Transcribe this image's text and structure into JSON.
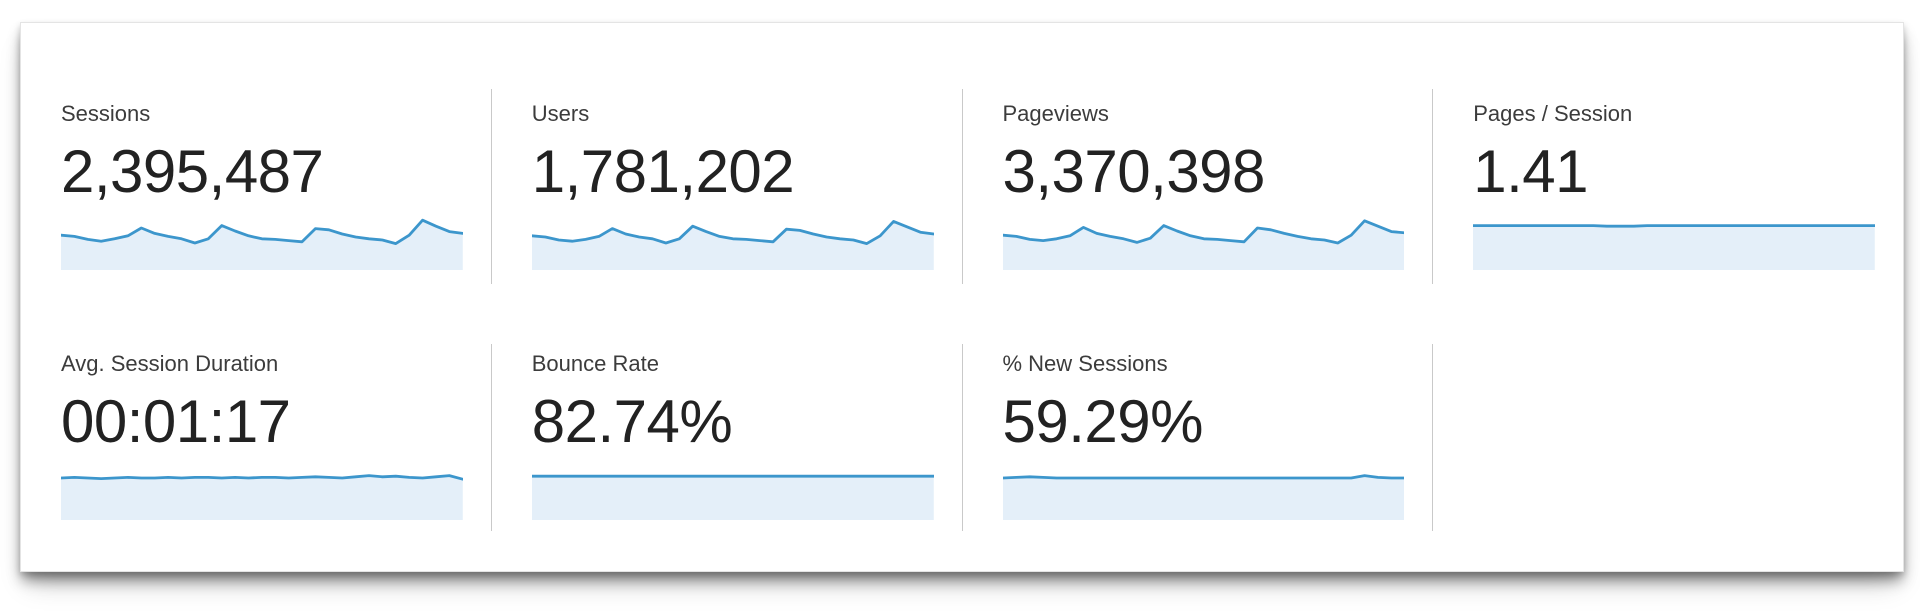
{
  "colors": {
    "sparkline_stroke": "#3c96cc",
    "sparkline_fill": "#e4eff9",
    "divider": "#c9c9c9",
    "panel_border": "#e4e4e4",
    "label_text": "#3c3c3c",
    "value_text": "#222222"
  },
  "sparkline_value_range": [
    0,
    100
  ],
  "cards": [
    {
      "label": "Sessions",
      "value": "2,395,487",
      "sparkline": [
        58,
        56,
        51,
        48,
        52,
        57,
        70,
        61,
        56,
        52,
        45,
        52,
        74,
        65,
        57,
        52,
        51,
        49,
        47,
        69,
        67,
        60,
        55,
        52,
        50,
        44,
        58,
        83,
        73,
        64,
        61
      ]
    },
    {
      "label": "Users",
      "value": "1,781,202",
      "sparkline": [
        57,
        55,
        50,
        48,
        51,
        56,
        69,
        60,
        55,
        52,
        45,
        52,
        73,
        64,
        56,
        52,
        51,
        49,
        47,
        68,
        66,
        60,
        55,
        52,
        50,
        44,
        57,
        81,
        72,
        63,
        60
      ]
    },
    {
      "label": "Pageviews",
      "value": "3,370,398",
      "sparkline": [
        58,
        56,
        51,
        49,
        52,
        57,
        71,
        61,
        56,
        52,
        46,
        53,
        74,
        65,
        57,
        52,
        51,
        49,
        47,
        70,
        67,
        61,
        56,
        52,
        50,
        45,
        58,
        82,
        73,
        64,
        62
      ]
    },
    {
      "label": "Pages / Session",
      "value": "1.41",
      "sparkline": [
        74,
        74,
        74,
        74,
        74,
        74,
        74,
        74,
        74,
        74,
        73,
        73,
        73,
        74,
        74,
        74,
        74,
        74,
        74,
        74,
        74,
        74,
        74,
        74,
        74,
        74,
        74,
        74,
        74,
        74,
        74
      ]
    },
    {
      "label": "Avg. Session Duration",
      "value": "00:01:17",
      "sparkline": [
        70,
        71,
        70,
        69,
        70,
        71,
        70,
        70,
        71,
        70,
        71,
        71,
        70,
        71,
        70,
        71,
        71,
        70,
        71,
        72,
        71,
        70,
        72,
        74,
        72,
        73,
        71,
        70,
        72,
        74,
        68
      ]
    },
    {
      "label": "Bounce Rate",
      "value": "82.74%",
      "sparkline": [
        73,
        73,
        73,
        73,
        73,
        73,
        73,
        73,
        73,
        73,
        73,
        73,
        73,
        73,
        73,
        73,
        73,
        73,
        73,
        73,
        73,
        73,
        73,
        73,
        73,
        73,
        73,
        73,
        73,
        73,
        73
      ]
    },
    {
      "label": "% New Sessions",
      "value": "59.29%",
      "sparkline": [
        70,
        71,
        72,
        71,
        70,
        70,
        70,
        70,
        70,
        70,
        70,
        70,
        70,
        70,
        70,
        70,
        70,
        70,
        70,
        70,
        70,
        70,
        70,
        70,
        70,
        70,
        70,
        74,
        71,
        70,
        70
      ]
    }
  ]
}
